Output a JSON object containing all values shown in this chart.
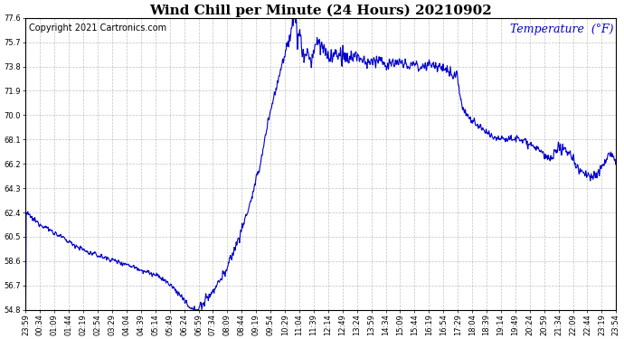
{
  "title": "Wind Chill per Minute (24 Hours) 20210902",
  "copyright": "Copyright 2021 Cartronics.com",
  "ylabel": "Temperature  (°F)",
  "ylabel_color": "#0000cc",
  "line_color": "#0000cc",
  "background_color": "#ffffff",
  "grid_color": "#999999",
  "ylim": [
    54.8,
    77.6
  ],
  "yticks": [
    54.8,
    56.7,
    58.6,
    60.5,
    62.4,
    64.3,
    66.2,
    68.1,
    70.0,
    71.9,
    73.8,
    75.7,
    77.6
  ],
  "xtick_labels": [
    "23:59",
    "00:34",
    "01:09",
    "01:44",
    "02:19",
    "02:54",
    "03:29",
    "04:04",
    "04:39",
    "05:14",
    "05:49",
    "06:24",
    "06:59",
    "07:34",
    "08:09",
    "08:44",
    "09:19",
    "09:54",
    "10:29",
    "11:04",
    "11:39",
    "12:14",
    "12:49",
    "13:24",
    "13:59",
    "14:34",
    "15:09",
    "15:44",
    "16:19",
    "16:54",
    "17:29",
    "18:04",
    "18:39",
    "19:14",
    "19:49",
    "20:24",
    "20:59",
    "21:34",
    "22:09",
    "22:44",
    "23:19",
    "23:54"
  ],
  "title_fontsize": 11,
  "copyright_fontsize": 7,
  "ylabel_fontsize": 9,
  "tick_fontsize": 6,
  "line_width": 0.8
}
